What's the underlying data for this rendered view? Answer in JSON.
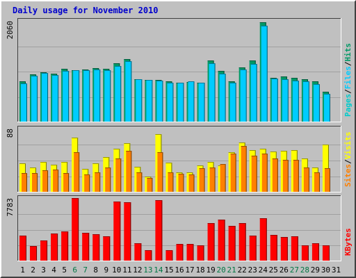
{
  "chart_data": {
    "type": "bar",
    "title": "Daily usage for November 2010",
    "categories": [
      "1",
      "2",
      "3",
      "4",
      "5",
      "6",
      "7",
      "8",
      "9",
      "10",
      "11",
      "12",
      "13",
      "14",
      "15",
      "16",
      "17",
      "18",
      "19",
      "20",
      "21",
      "22",
      "23",
      "24",
      "25",
      "26",
      "27",
      "28",
      "29",
      "30",
      "31"
    ],
    "weekend_days": [
      "6",
      "7",
      "13",
      "14",
      "20",
      "21",
      "27",
      "28"
    ],
    "panels": [
      {
        "ymax": 2060,
        "ylim_label": "2060",
        "series": [
          {
            "name": "Pages",
            "color": "#00cccc",
            "values": null
          },
          {
            "name": "Files",
            "color": "#00ccff",
            "values": [
              785,
              940,
              1000,
              955,
              1030,
              1045,
              1045,
              1060,
              1055,
              1130,
              1240,
              860,
              855,
              845,
              795,
              795,
              820,
              790,
              1200,
              980,
              790,
              1060,
              1180,
              1960,
              885,
              870,
              840,
              830,
              770,
              570,
              0
            ]
          },
          {
            "name": "Hits",
            "color": "#009966",
            "values": [
              825,
              960,
              1015,
              985,
              1085,
              1055,
              1060,
              1100,
              1080,
              1190,
              1275,
              870,
              850,
              855,
              825,
              800,
              815,
              795,
              1250,
              1030,
              820,
              1105,
              1250,
              2030,
              900,
              930,
              900,
              860,
              820,
              605,
              0
            ]
          }
        ],
        "legend": [
          "Pages",
          "Files",
          "Hits"
        ]
      },
      {
        "ymax": 88,
        "ylim_label": "88",
        "series": [
          {
            "name": "Visits",
            "color": "#ffff00",
            "values": [
              40,
              34,
              42,
              38,
              42,
              75,
              32,
              40,
              48,
              60,
              68,
              35,
              21,
              80,
              41,
              27,
              27,
              37,
              42,
              37,
              55,
              69,
              58,
              60,
              56,
              57,
              58,
              46,
              34,
              66,
              0
            ]
          },
          {
            "name": "Sites",
            "color": "#ff8000",
            "values": [
              26,
              26,
              30,
              31,
              26,
              55,
              24,
              27,
              34,
              46,
              57,
              27,
              19,
              55,
              27,
              25,
              24,
              33,
              34,
              39,
              53,
              64,
              50,
              53,
              46,
              44,
              44,
              34,
              27,
              33,
              0
            ]
          }
        ],
        "legend": [
          "Sites",
          "Visits"
        ]
      },
      {
        "ymax": 7783,
        "ylim_label": "7783",
        "series": [
          {
            "name": "KBytes",
            "color": "#ff0000",
            "values": [
              3080,
              1820,
              2520,
              3380,
              3600,
              7800,
              3500,
              3280,
              2990,
              7380,
              7270,
              2180,
              1340,
              7560,
              1270,
              2100,
              2040,
              1880,
              4640,
              5120,
              4320,
              4660,
              3080,
              5270,
              3220,
              2950,
              3030,
              1940,
              2140,
              1900,
              0
            ]
          }
        ],
        "legend": [
          "KBytes"
        ]
      }
    ]
  }
}
